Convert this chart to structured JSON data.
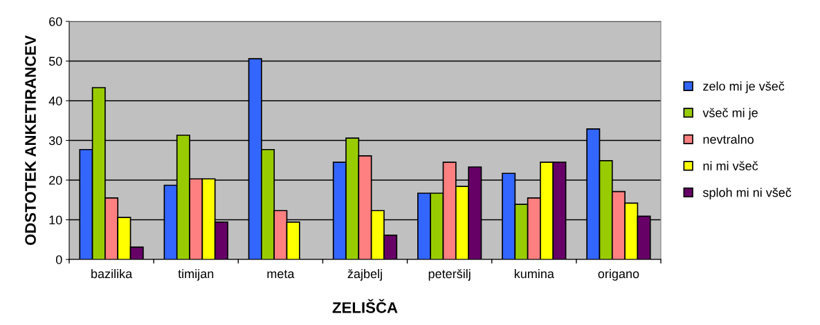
{
  "chart_data": {
    "type": "bar",
    "xlabel": "ZELIŠČA",
    "ylabel": "ODSTOTEK ANKETIRANCEV",
    "categories": [
      "bazilika",
      "timijan",
      "meta",
      "žajbelj",
      "peteršilj",
      "kumina",
      "origano"
    ],
    "series": [
      {
        "name": "zelo mi je všeč",
        "color": "#3366ff",
        "values": [
          27.7,
          18.7,
          50.6,
          24.5,
          16.7,
          21.7,
          32.9
        ]
      },
      {
        "name": "všeč mi je",
        "color": "#99cc00",
        "values": [
          43.3,
          31.3,
          27.7,
          30.6,
          16.7,
          13.9,
          24.9
        ]
      },
      {
        "name": "nevtralno",
        "color": "#ff8080",
        "values": [
          15.5,
          20.3,
          12.3,
          26.1,
          24.5,
          15.5,
          17.1
        ]
      },
      {
        "name": "ni mi všeč",
        "color": "#ffff00",
        "values": [
          10.6,
          20.3,
          9.4,
          12.3,
          18.4,
          24.5,
          14.2
        ]
      },
      {
        "name": "sploh mi ni všeč",
        "color": "#660066",
        "values": [
          3.1,
          9.4,
          null,
          6.1,
          23.3,
          24.5,
          10.9
        ]
      }
    ],
    "ylim": [
      0,
      60
    ],
    "yticks": [
      0,
      10,
      20,
      30,
      40,
      50,
      60
    ],
    "grid": "y",
    "legend": "right"
  }
}
